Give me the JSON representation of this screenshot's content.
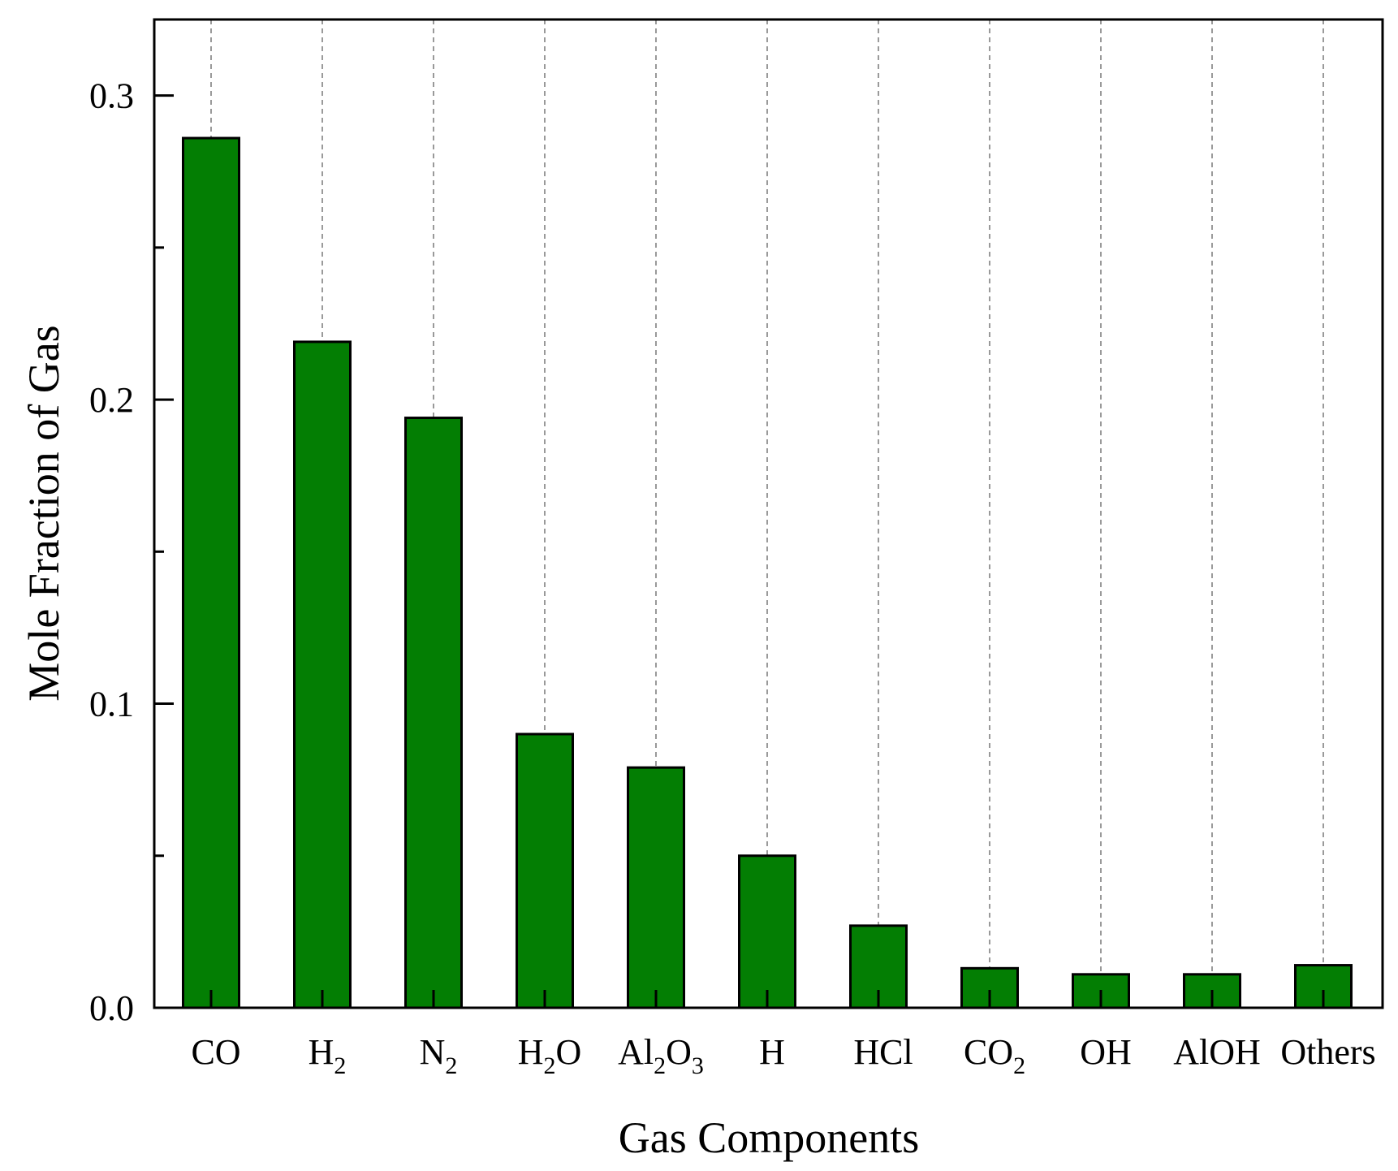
{
  "colors": {
    "bar": "#037E03",
    "bar_edge": "#000000",
    "guide": "#808080"
  },
  "chart_data": {
    "type": "bar",
    "xlabel": "Gas Components",
    "ylabel": "Mole Fraction of Gas",
    "ylim": [
      0,
      0.325
    ],
    "yticks": [
      {
        "value": 0.0,
        "label": "0.0"
      },
      {
        "value": 0.1,
        "label": "0.1"
      },
      {
        "value": 0.2,
        "label": "0.2"
      },
      {
        "value": 0.3,
        "label": "0.3"
      }
    ],
    "y_minor_ticks": [
      0.05,
      0.15,
      0.25
    ],
    "grid": "vertical dashed at categories",
    "categories": [
      {
        "name": "CO",
        "parts": [
          [
            "CO",
            ""
          ]
        ]
      },
      {
        "name": "H2",
        "parts": [
          [
            "H",
            ""
          ],
          [
            "2",
            "sub"
          ]
        ]
      },
      {
        "name": "N2",
        "parts": [
          [
            "N",
            ""
          ],
          [
            "2",
            "sub"
          ]
        ]
      },
      {
        "name": "H2O",
        "parts": [
          [
            "H",
            ""
          ],
          [
            "2",
            "sub"
          ],
          [
            "O",
            ""
          ]
        ]
      },
      {
        "name": "Al2O3",
        "parts": [
          [
            "Al",
            ""
          ],
          [
            "2",
            "sub"
          ],
          [
            "O",
            ""
          ],
          [
            "3",
            "sub"
          ]
        ]
      },
      {
        "name": "H",
        "parts": [
          [
            "H",
            ""
          ]
        ]
      },
      {
        "name": "HCl",
        "parts": [
          [
            "HCl",
            ""
          ]
        ]
      },
      {
        "name": "CO2",
        "parts": [
          [
            "CO",
            ""
          ],
          [
            "2",
            "sub"
          ]
        ]
      },
      {
        "name": "OH",
        "parts": [
          [
            "OH",
            ""
          ]
        ]
      },
      {
        "name": "AlOH",
        "parts": [
          [
            "AlOH",
            ""
          ]
        ]
      },
      {
        "name": "Others",
        "parts": [
          [
            "Others",
            ""
          ]
        ]
      }
    ],
    "values": [
      0.286,
      0.219,
      0.194,
      0.09,
      0.079,
      0.05,
      0.027,
      0.013,
      0.011,
      0.011,
      0.014
    ]
  }
}
